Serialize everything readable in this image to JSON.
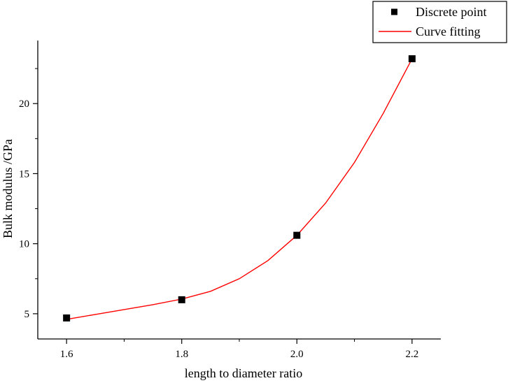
{
  "chart_data": {
    "type": "scatter",
    "title": "",
    "xlabel": "length to diameter ratio",
    "ylabel": "Bulk modulus /GPa",
    "xlim": [
      1.55,
      2.25
    ],
    "ylim": [
      3.2,
      24.5
    ],
    "x_ticks": [
      "1.6",
      "1.8",
      "2.0",
      "2.2"
    ],
    "y_ticks": [
      "5",
      "10",
      "15",
      "20"
    ],
    "x_tick_values": [
      1.6,
      1.8,
      2.0,
      2.2
    ],
    "y_tick_values": [
      5,
      10,
      15,
      20
    ],
    "grid": false,
    "legend_position": "top-right",
    "series": [
      {
        "name": "Discrete point",
        "kind": "points",
        "color": "#000000",
        "marker": "square",
        "x": [
          1.6,
          1.8,
          2.0,
          2.2
        ],
        "y": [
          4.7,
          6.0,
          10.6,
          23.2
        ]
      },
      {
        "name": "Curve fitting",
        "kind": "line",
        "color": "#ff0000",
        "x": [
          1.6,
          1.65,
          1.7,
          1.75,
          1.8,
          1.85,
          1.9,
          1.95,
          2.0,
          2.05,
          2.1,
          2.15,
          2.2
        ],
        "y": [
          4.6,
          4.95,
          5.3,
          5.65,
          6.05,
          6.6,
          7.5,
          8.8,
          10.6,
          12.9,
          15.8,
          19.3,
          23.2
        ]
      }
    ]
  }
}
